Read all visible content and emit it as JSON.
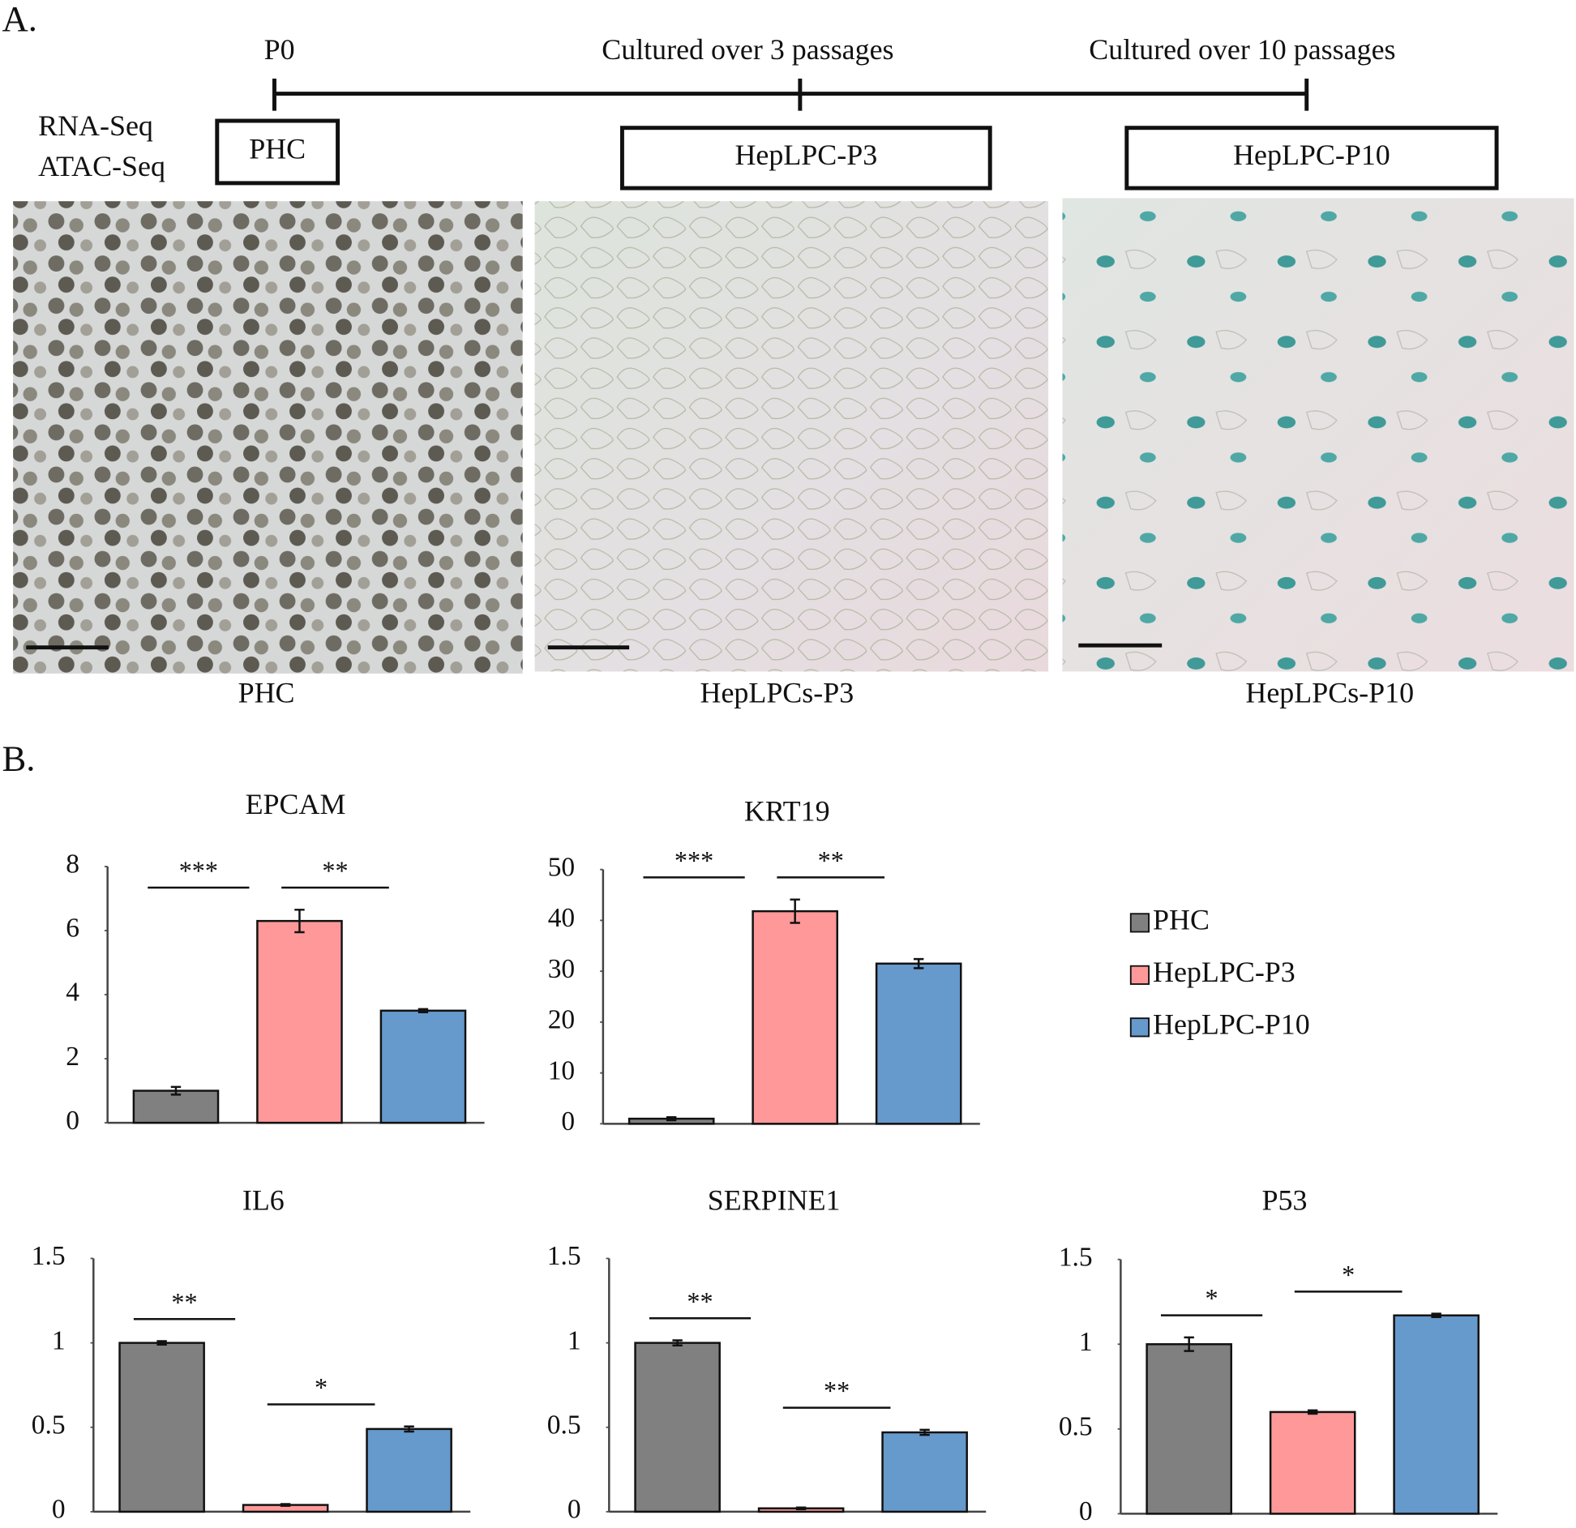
{
  "panel_a": {
    "label": "A.",
    "timeline": [
      "P0",
      "Cultured over 3 passages",
      "Cultured over 10 passages"
    ],
    "assays": [
      "RNA-Seq",
      "ATAC-Seq"
    ],
    "samples": [
      "PHC",
      "HepLPC-P3",
      "HepLPC-P10"
    ],
    "captions": [
      "PHC",
      "HepLPCs-P3",
      "HepLPCs-P10"
    ]
  },
  "panel_b": {
    "label": "B."
  },
  "legend": [
    {
      "name": "PHC",
      "color": "#808080"
    },
    {
      "name": "HepLPC-P3",
      "color": "#ff9999"
    },
    {
      "name": "HepLPC-P10",
      "color": "#6699cc"
    }
  ],
  "chart_data": [
    {
      "type": "bar",
      "title": "EPCAM",
      "values": [
        1.0,
        6.3,
        3.5
      ],
      "errors": [
        0.12,
        0.35,
        0.05
      ],
      "ylim": [
        0,
        8
      ],
      "yticks": [
        0,
        2,
        4,
        6,
        8
      ],
      "significance": [
        {
          "label": "***",
          "from": 0,
          "to": 1
        },
        {
          "label": "**",
          "from": 1,
          "to": 2
        }
      ]
    },
    {
      "type": "bar",
      "title": "KRT19",
      "values": [
        1.0,
        41.8,
        31.5
      ],
      "errors": [
        0.3,
        2.3,
        0.9
      ],
      "ylim": [
        0,
        50
      ],
      "yticks": [
        0,
        10,
        20,
        30,
        40,
        50
      ],
      "significance": [
        {
          "label": "***",
          "from": 0,
          "to": 1
        },
        {
          "label": "**",
          "from": 1,
          "to": 2
        }
      ]
    },
    {
      "type": "bar",
      "title": "IL6",
      "values": [
        1.0,
        0.04,
        0.49
      ],
      "errors": [
        0.01,
        0.005,
        0.015
      ],
      "ylim": [
        0,
        1.5
      ],
      "yticks": [
        0,
        0.5,
        1,
        1.5
      ],
      "significance": [
        {
          "label": "**",
          "from": 0,
          "to": 1
        },
        {
          "label": "*",
          "from": 1,
          "to": 2
        }
      ]
    },
    {
      "type": "bar",
      "title": "SERPINE1",
      "values": [
        1.0,
        0.02,
        0.47
      ],
      "errors": [
        0.015,
        0.005,
        0.015
      ],
      "ylim": [
        0,
        1.5
      ],
      "yticks": [
        0,
        0.5,
        1,
        1.5
      ],
      "significance": [
        {
          "label": "**",
          "from": 0,
          "to": 1
        },
        {
          "label": "**",
          "from": 1,
          "to": 2
        }
      ]
    },
    {
      "type": "bar",
      "title": "P53",
      "values": [
        1.0,
        0.6,
        1.17
      ],
      "errors": [
        0.04,
        0.01,
        0.01
      ],
      "ylim": [
        0,
        1.5
      ],
      "yticks": [
        0,
        0.5,
        1,
        1.5
      ],
      "significance": [
        {
          "label": "*",
          "from": 0,
          "to": 1
        },
        {
          "label": "*",
          "from": 1,
          "to": 2
        }
      ]
    }
  ]
}
